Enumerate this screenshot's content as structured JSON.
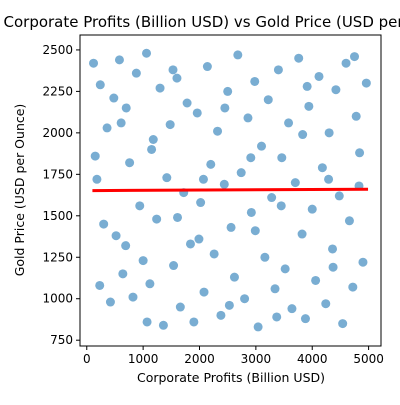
{
  "chart_data": {
    "type": "scatter",
    "title": "Corporate Profits (Billion USD) vs Gold Price (USD per Ounce)",
    "xlabel": "Corporate Profits (Billion USD)",
    "ylabel": "Gold Price (USD per Ounce)",
    "xlim": [
      -120,
      5220
    ],
    "ylim": [
      715,
      2590
    ],
    "x_ticks": [
      0,
      1000,
      2000,
      3000,
      4000,
      5000
    ],
    "y_ticks": [
      750,
      1000,
      1250,
      1500,
      1750,
      2000,
      2250,
      2500
    ],
    "grid": false,
    "legend": "none",
    "series": [
      {
        "style": "scatter",
        "color": "#1f77b4",
        "alpha": 0.6,
        "points": [
          [
            120,
            2420
          ],
          [
            180,
            1720
          ],
          [
            240,
            2290
          ],
          [
            300,
            1450
          ],
          [
            360,
            2030
          ],
          [
            420,
            980
          ],
          [
            480,
            2210
          ],
          [
            520,
            1380
          ],
          [
            580,
            2440
          ],
          [
            640,
            1150
          ],
          [
            700,
            2150
          ],
          [
            760,
            1820
          ],
          [
            820,
            1010
          ],
          [
            880,
            2360
          ],
          [
            940,
            1560
          ],
          [
            1000,
            1230
          ],
          [
            1060,
            2480
          ],
          [
            1120,
            1090
          ],
          [
            1180,
            1960
          ],
          [
            1240,
            1480
          ],
          [
            1300,
            2270
          ],
          [
            1360,
            840
          ],
          [
            1420,
            1730
          ],
          [
            1480,
            2050
          ],
          [
            1540,
            1200
          ],
          [
            1600,
            2330
          ],
          [
            1660,
            950
          ],
          [
            1720,
            1640
          ],
          [
            1780,
            2180
          ],
          [
            1840,
            1330
          ],
          [
            1900,
            860
          ],
          [
            1960,
            2120
          ],
          [
            2020,
            1580
          ],
          [
            2080,
            1040
          ],
          [
            2140,
            2400
          ],
          [
            2200,
            1810
          ],
          [
            2260,
            1270
          ],
          [
            2320,
            2010
          ],
          [
            2380,
            900
          ],
          [
            2440,
            1690
          ],
          [
            2500,
            2250
          ],
          [
            2560,
            1430
          ],
          [
            2620,
            1130
          ],
          [
            2680,
            2470
          ],
          [
            2740,
            1760
          ],
          [
            2800,
            1000
          ],
          [
            2860,
            2090
          ],
          [
            2920,
            1520
          ],
          [
            2980,
            2310
          ],
          [
            3040,
            830
          ],
          [
            3100,
            1920
          ],
          [
            3160,
            1250
          ],
          [
            3220,
            2200
          ],
          [
            3280,
            1610
          ],
          [
            3340,
            1060
          ],
          [
            3400,
            2380
          ],
          [
            3460,
            1850
          ],
          [
            3520,
            1180
          ],
          [
            3580,
            2060
          ],
          [
            3640,
            940
          ],
          [
            3700,
            1700
          ],
          [
            3760,
            2450
          ],
          [
            3820,
            1390
          ],
          [
            3880,
            880
          ],
          [
            3940,
            2160
          ],
          [
            4000,
            1540
          ],
          [
            4060,
            1110
          ],
          [
            4120,
            2340
          ],
          [
            4180,
            1790
          ],
          [
            4240,
            970
          ],
          [
            4300,
            2000
          ],
          [
            4360,
            1300
          ],
          [
            4420,
            2260
          ],
          [
            4480,
            1620
          ],
          [
            4540,
            850
          ],
          [
            4600,
            2420
          ],
          [
            4660,
            1470
          ],
          [
            4720,
            1070
          ],
          [
            4780,
            2100
          ],
          [
            4840,
            1880
          ],
          [
            4900,
            1220
          ],
          [
            4960,
            2300
          ],
          [
            230,
            1080
          ],
          [
            690,
            1320
          ],
          [
            1150,
            1900
          ],
          [
            1610,
            1490
          ],
          [
            2070,
            1720
          ],
          [
            2530,
            960
          ],
          [
            2990,
            1410
          ],
          [
            3450,
            1560
          ],
          [
            3910,
            2280
          ],
          [
            4370,
            1190
          ],
          [
            4830,
            1680
          ],
          [
            150,
            1860
          ],
          [
            610,
            2060
          ],
          [
            1070,
            860
          ],
          [
            1530,
            2380
          ],
          [
            1990,
            1360
          ],
          [
            2450,
            2150
          ],
          [
            2910,
            1850
          ],
          [
            3370,
            890
          ],
          [
            3830,
            1990
          ],
          [
            4290,
            1720
          ],
          [
            4750,
            2460
          ]
        ]
      },
      {
        "style": "line",
        "color": "#ff0000",
        "points": [
          [
            100,
            1652
          ],
          [
            4990,
            1660
          ]
        ]
      }
    ]
  }
}
